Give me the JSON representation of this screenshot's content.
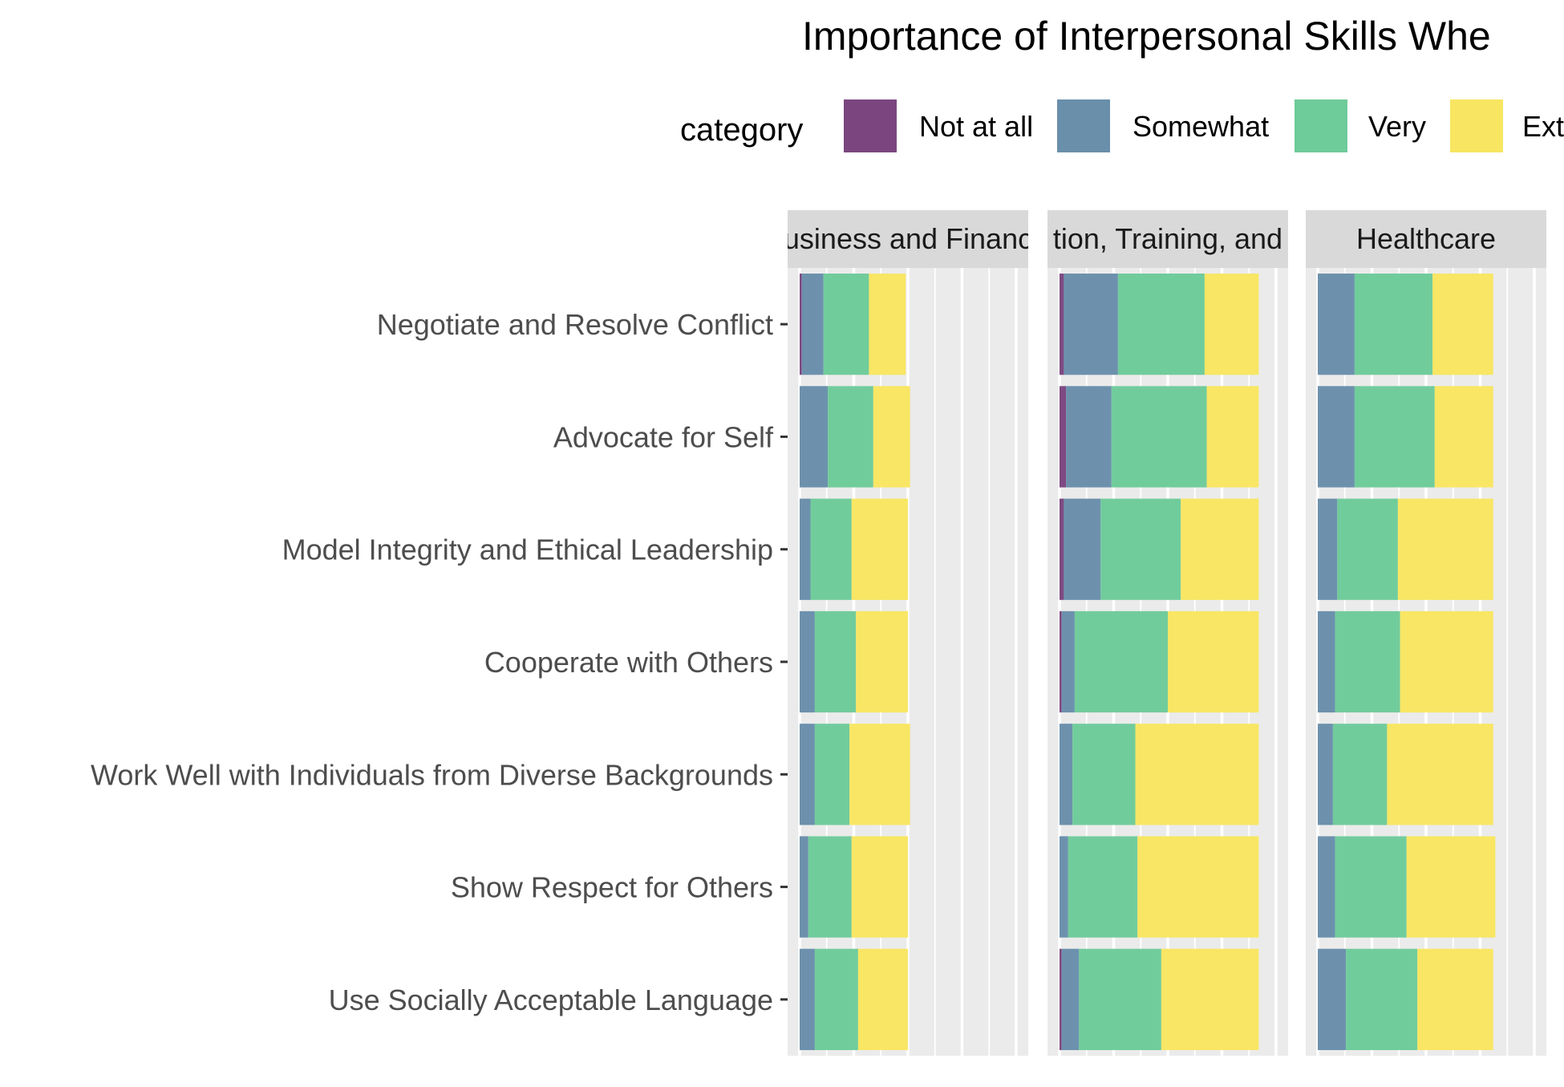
{
  "chart_data": {
    "type": "bar",
    "orientation": "horizontal-stacked",
    "title": "Importance of Interpersonal Skills Whe",
    "legend": {
      "title": "category",
      "position": "top",
      "labels": [
        "Not at all",
        "Somewhat",
        "Very",
        "Ext"
      ]
    },
    "colors": {
      "Not at all": "#7b4680",
      "Somewhat": "#6a8fab",
      "Very": "#6ecb9a",
      "Extremely": "#f8e561",
      "panel_bg": "#ebebeb",
      "strip_bg": "#d9d9d9",
      "grid": "#ffffff"
    },
    "categories": [
      "Negotiate and Resolve Conflict",
      "Advocate for Self",
      "Model Integrity and Ethical Leadership",
      "Cooperate with Others",
      "Work Well with Individuals from Diverse Backgrounds",
      "Show Respect for Others",
      "Use Socially Acceptable Language"
    ],
    "x_range": [
      0,
      1
    ],
    "grid": true,
    "panels": [
      {
        "strip_label": "usiness and Financ",
        "series": [
          {
            "name": "Not at all",
            "values": [
              0.01,
              0.0,
              0.0,
              0.0,
              0.0,
              0.0,
              0.0
            ]
          },
          {
            "name": "Somewhat",
            "values": [
              0.1,
              0.13,
              0.05,
              0.07,
              0.07,
              0.04,
              0.07
            ]
          },
          {
            "name": "Very",
            "values": [
              0.21,
              0.21,
              0.19,
              0.19,
              0.16,
              0.2,
              0.2
            ]
          },
          {
            "name": "Extremely",
            "values": [
              0.17,
              0.17,
              0.26,
              0.24,
              0.28,
              0.26,
              0.23
            ]
          }
        ]
      },
      {
        "strip_label": "tion, Training, and",
        "series": [
          {
            "name": "Not at all",
            "values": [
              0.02,
              0.03,
              0.02,
              0.01,
              0.0,
              0.0,
              0.01
            ]
          },
          {
            "name": "Somewhat",
            "values": [
              0.25,
              0.21,
              0.17,
              0.06,
              0.06,
              0.04,
              0.08
            ]
          },
          {
            "name": "Very",
            "values": [
              0.4,
              0.44,
              0.37,
              0.43,
              0.29,
              0.32,
              0.38
            ]
          },
          {
            "name": "Extremely",
            "values": [
              0.25,
              0.24,
              0.36,
              0.42,
              0.57,
              0.56,
              0.45
            ]
          }
        ]
      },
      {
        "strip_label": "Healthcare",
        "series": [
          {
            "name": "Not at all",
            "values": [
              0.0,
              0.0,
              0.0,
              0.0,
              0.0,
              0.0,
              0.0
            ]
          },
          {
            "name": "Somewhat",
            "values": [
              0.17,
              0.17,
              0.09,
              0.08,
              0.07,
              0.08,
              0.13
            ]
          },
          {
            "name": "Very",
            "values": [
              0.36,
              0.37,
              0.28,
              0.3,
              0.25,
              0.33,
              0.33
            ]
          },
          {
            "name": "Extremely",
            "values": [
              0.28,
              0.27,
              0.44,
              0.43,
              0.49,
              0.41,
              0.35
            ]
          }
        ]
      }
    ]
  }
}
